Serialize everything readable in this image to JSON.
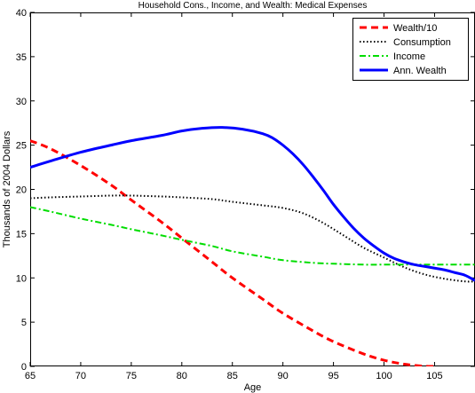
{
  "chart_data": {
    "type": "line",
    "title": "Household Cons., Income, and Wealth: Medical Expenses",
    "xlabel": "Age",
    "ylabel": "Thousands of 2004 Dollars",
    "xlim": [
      65,
      109
    ],
    "ylim": [
      0,
      40
    ],
    "xticks": [
      65,
      70,
      75,
      80,
      85,
      90,
      95,
      100,
      105
    ],
    "yticks": [
      0,
      5,
      10,
      15,
      20,
      25,
      30,
      35,
      40
    ],
    "grid": false,
    "legend_position": "top-right",
    "series": [
      {
        "name": "Wealth/10",
        "color": "#ff0000",
        "style": "dashed",
        "x": [
          65,
          67,
          70,
          73,
          75,
          78,
          80,
          83,
          85,
          88,
          90,
          93,
          95,
          98,
          100,
          102,
          104,
          105
        ],
        "y": [
          25.5,
          24.6,
          22.7,
          20.5,
          18.8,
          16.3,
          14.5,
          11.8,
          10.0,
          7.6,
          6.0,
          4.0,
          2.8,
          1.4,
          0.7,
          0.25,
          0.02,
          0.0
        ]
      },
      {
        "name": "Consumption",
        "color": "#000000",
        "style": "dotted",
        "x": [
          65,
          67,
          70,
          73,
          75,
          78,
          80,
          83,
          85,
          88,
          90,
          92,
          94,
          96,
          98,
          100,
          102,
          104,
          106,
          108,
          109
        ],
        "y": [
          19.0,
          19.1,
          19.2,
          19.3,
          19.3,
          19.2,
          19.1,
          18.9,
          18.6,
          18.2,
          17.9,
          17.3,
          16.2,
          14.8,
          13.4,
          12.3,
          11.2,
          10.4,
          9.9,
          9.6,
          9.6
        ]
      },
      {
        "name": "Income",
        "color": "#00dd00",
        "style": "dashdot",
        "x": [
          65,
          67,
          70,
          73,
          75,
          78,
          80,
          83,
          85,
          88,
          90,
          93,
          95,
          98,
          100,
          103,
          105,
          109
        ],
        "y": [
          18.0,
          17.5,
          16.7,
          16.0,
          15.5,
          14.8,
          14.3,
          13.6,
          13.0,
          12.4,
          12.0,
          11.7,
          11.6,
          11.5,
          11.5,
          11.5,
          11.5,
          11.5
        ]
      },
      {
        "name": "Ann. Wealth",
        "color": "#0000ff",
        "style": "solid",
        "x": [
          65,
          67,
          70,
          73,
          75,
          78,
          80,
          82,
          84,
          86,
          88,
          89,
          90,
          91,
          92,
          93,
          94,
          95,
          96,
          97,
          98,
          99,
          100,
          101,
          102,
          103,
          104,
          105,
          106,
          107,
          108,
          109
        ],
        "y": [
          22.5,
          23.2,
          24.2,
          25.0,
          25.5,
          26.1,
          26.6,
          26.9,
          27.0,
          26.8,
          26.3,
          25.8,
          25.0,
          24.0,
          22.8,
          21.4,
          19.9,
          18.3,
          16.9,
          15.6,
          14.5,
          13.6,
          12.8,
          12.2,
          11.8,
          11.5,
          11.3,
          11.1,
          10.9,
          10.6,
          10.3,
          9.7
        ]
      }
    ]
  }
}
